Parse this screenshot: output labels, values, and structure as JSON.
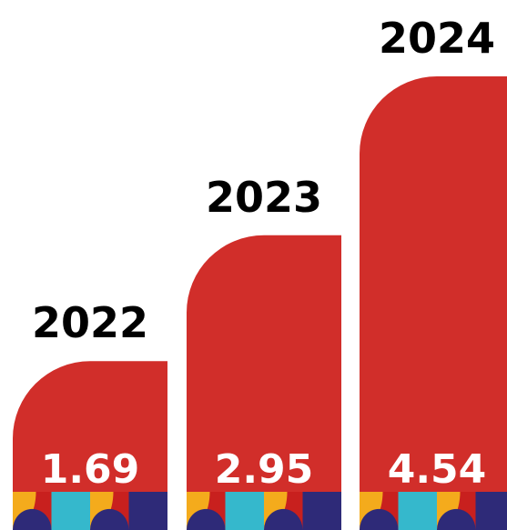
{
  "chart_data": {
    "type": "bar",
    "categories": [
      "2022",
      "2023",
      "2024"
    ],
    "values": [
      1.69,
      2.95,
      4.54
    ],
    "value_labels": [
      "1.69",
      "2.95",
      "4.54"
    ],
    "title": "",
    "xlabel": "",
    "ylabel": "",
    "grid": false,
    "legend": "none"
  },
  "colors": {
    "bar": "#d12e2a",
    "pattern_yellow": "#f4ab1c",
    "pattern_cyan": "#35b8cc",
    "pattern_navy": "#2e2a78",
    "pattern_red": "#c8201e",
    "year_text": "#000000",
    "value_text": "#ffffff"
  },
  "decoration": {
    "icon": "geometric-pattern-strip"
  }
}
